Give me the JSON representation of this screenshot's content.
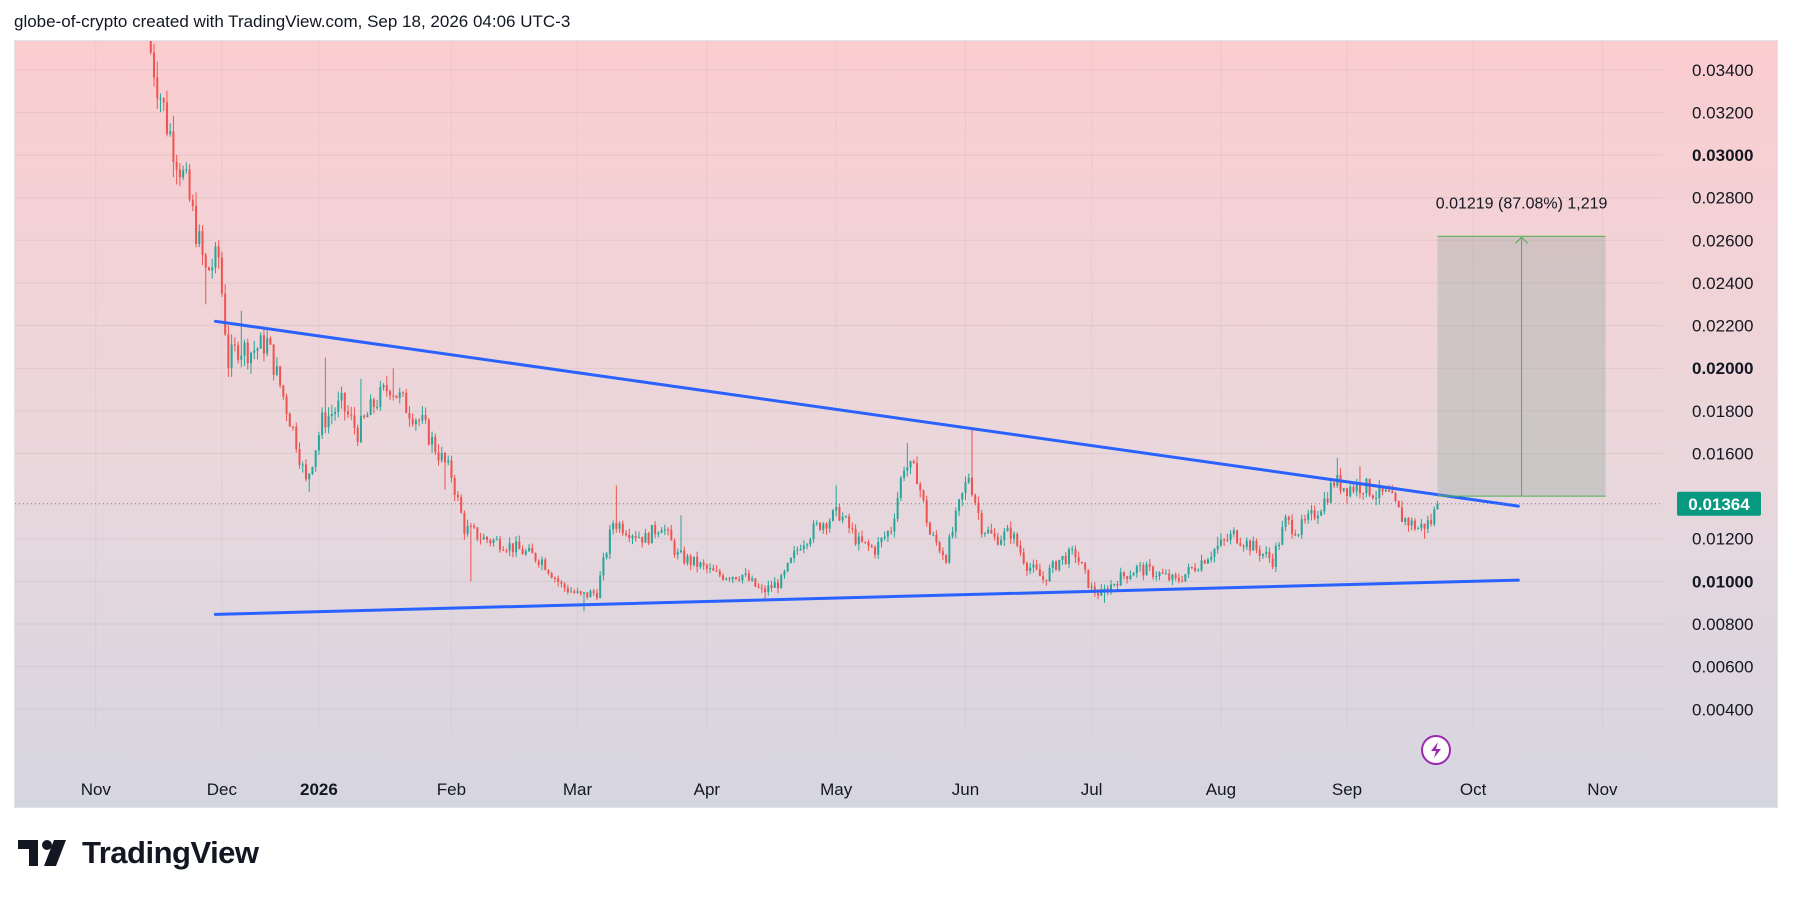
{
  "header": {
    "attribution": "globe-of-crypto created with TradingView.com, Sep 18, 2026 04:06 UTC-3"
  },
  "footer": {
    "brand": "TradingView"
  },
  "chart_data": {
    "type": "candlestick",
    "y_ticks": [
      "0.03400",
      "0.03200",
      "0.03000",
      "0.02800",
      "0.02600",
      "0.02400",
      "0.02200",
      "0.02000",
      "0.01800",
      "0.01600",
      "0.01200",
      "0.01000",
      "0.00800",
      "0.00600",
      "0.00400"
    ],
    "y_tick_values": [
      0.034,
      0.032,
      0.03,
      0.028,
      0.026,
      0.024,
      0.022,
      0.02,
      0.018,
      0.016,
      0.012,
      0.01,
      0.008,
      0.006,
      0.004
    ],
    "bold_ticks": [
      "0.03000",
      "0.02000",
      "0.01000"
    ],
    "ylim": [
      0.00345,
      0.03535
    ],
    "x_ticks": [
      "Nov",
      "Dec",
      "2026",
      "Feb",
      "Mar",
      "Apr",
      "May",
      "Jun",
      "Jul",
      "Aug",
      "Sep",
      "Oct",
      "Nov"
    ],
    "bold_x_ticks": [
      "2026"
    ],
    "x_tick_index": [
      0,
      39,
      69,
      110,
      149,
      189,
      229,
      269,
      308,
      348,
      387,
      426,
      466
    ],
    "x_range_index": [
      -25,
      520
    ],
    "current_price": {
      "label": "0.01364",
      "value": 0.01364
    },
    "colors": {
      "up": "#26a69a",
      "down": "#ef5350",
      "trendline": "#2962ff",
      "projection": "#4caf50",
      "price_badge": "#089981"
    },
    "trendlines": [
      {
        "name": "resistance",
        "from": {
          "i": 37,
          "v": 0.0222
        },
        "to": {
          "i": 440,
          "v": 0.01353
        }
      },
      {
        "name": "support",
        "from": {
          "i": 37,
          "v": 0.00845
        },
        "to": {
          "i": 440,
          "v": 0.01006
        }
      }
    ],
    "projection": {
      "label": "0.01219 (87.08%) 1,219",
      "from_index": 415,
      "to_index": 467,
      "low": 0.014,
      "high": 0.02619
    },
    "price_path": [
      {
        "i": 16,
        "v": 0.0355
      },
      {
        "i": 22,
        "v": 0.0315
      },
      {
        "i": 28,
        "v": 0.0285
      },
      {
        "i": 34,
        "v": 0.0245
      },
      {
        "i": 38,
        "v": 0.0252
      },
      {
        "i": 41,
        "v": 0.0203
      },
      {
        "i": 44,
        "v": 0.021
      },
      {
        "i": 48,
        "v": 0.0208
      },
      {
        "i": 53,
        "v": 0.0212
      },
      {
        "i": 57,
        "v": 0.0192
      },
      {
        "i": 62,
        "v": 0.0166
      },
      {
        "i": 65,
        "v": 0.0146
      },
      {
        "i": 70,
        "v": 0.0175
      },
      {
        "i": 76,
        "v": 0.0183
      },
      {
        "i": 81,
        "v": 0.017
      },
      {
        "i": 86,
        "v": 0.0183
      },
      {
        "i": 91,
        "v": 0.0192
      },
      {
        "i": 96,
        "v": 0.0182
      },
      {
        "i": 101,
        "v": 0.0174
      },
      {
        "i": 106,
        "v": 0.016
      },
      {
        "i": 110,
        "v": 0.015
      },
      {
        "i": 114,
        "v": 0.0125
      },
      {
        "i": 120,
        "v": 0.012
      },
      {
        "i": 126,
        "v": 0.0118
      },
      {
        "i": 132,
        "v": 0.0114
      },
      {
        "i": 138,
        "v": 0.011
      },
      {
        "i": 144,
        "v": 0.0098
      },
      {
        "i": 150,
        "v": 0.0093
      },
      {
        "i": 155,
        "v": 0.0095
      },
      {
        "i": 160,
        "v": 0.0128
      },
      {
        "i": 165,
        "v": 0.0124
      },
      {
        "i": 170,
        "v": 0.012
      },
      {
        "i": 175,
        "v": 0.0127
      },
      {
        "i": 180,
        "v": 0.0112
      },
      {
        "i": 186,
        "v": 0.0108
      },
      {
        "i": 192,
        "v": 0.0103
      },
      {
        "i": 200,
        "v": 0.0103
      },
      {
        "i": 206,
        "v": 0.0095
      },
      {
        "i": 212,
        "v": 0.01
      },
      {
        "i": 218,
        "v": 0.0118
      },
      {
        "i": 224,
        "v": 0.0127
      },
      {
        "i": 230,
        "v": 0.0132
      },
      {
        "i": 236,
        "v": 0.0118
      },
      {
        "i": 241,
        "v": 0.0115
      },
      {
        "i": 246,
        "v": 0.0125
      },
      {
        "i": 250,
        "v": 0.0155
      },
      {
        "i": 254,
        "v": 0.015
      },
      {
        "i": 258,
        "v": 0.0122
      },
      {
        "i": 263,
        "v": 0.0112
      },
      {
        "i": 267,
        "v": 0.0135
      },
      {
        "i": 270,
        "v": 0.015
      },
      {
        "i": 274,
        "v": 0.0126
      },
      {
        "i": 278,
        "v": 0.012
      },
      {
        "i": 283,
        "v": 0.0123
      },
      {
        "i": 288,
        "v": 0.0108
      },
      {
        "i": 293,
        "v": 0.0101
      },
      {
        "i": 298,
        "v": 0.011
      },
      {
        "i": 303,
        "v": 0.0113
      },
      {
        "i": 308,
        "v": 0.0096
      },
      {
        "i": 311,
        "v": 0.0094
      },
      {
        "i": 316,
        "v": 0.0101
      },
      {
        "i": 322,
        "v": 0.0106
      },
      {
        "i": 328,
        "v": 0.0104
      },
      {
        "i": 334,
        "v": 0.01
      },
      {
        "i": 340,
        "v": 0.0107
      },
      {
        "i": 346,
        "v": 0.0115
      },
      {
        "i": 352,
        "v": 0.0122
      },
      {
        "i": 358,
        "v": 0.0116
      },
      {
        "i": 364,
        "v": 0.011
      },
      {
        "i": 368,
        "v": 0.0128
      },
      {
        "i": 372,
        "v": 0.0124
      },
      {
        "i": 376,
        "v": 0.013
      },
      {
        "i": 380,
        "v": 0.0138
      },
      {
        "i": 383,
        "v": 0.0147
      },
      {
        "i": 387,
        "v": 0.0144
      },
      {
        "i": 392,
        "v": 0.0145
      },
      {
        "i": 396,
        "v": 0.0141
      },
      {
        "i": 400,
        "v": 0.014
      },
      {
        "i": 404,
        "v": 0.013
      },
      {
        "i": 409,
        "v": 0.0125
      },
      {
        "i": 413,
        "v": 0.0128
      },
      {
        "i": 415,
        "v": 0.01364
      }
    ],
    "swing_extremes": [
      {
        "i": 34,
        "v": 0.023
      },
      {
        "i": 45,
        "v": 0.0227
      },
      {
        "i": 66,
        "v": 0.0142
      },
      {
        "i": 71,
        "v": 0.0205
      },
      {
        "i": 82,
        "v": 0.0195
      },
      {
        "i": 92,
        "v": 0.02
      },
      {
        "i": 108,
        "v": 0.0143
      },
      {
        "i": 116,
        "v": 0.01
      },
      {
        "i": 151,
        "v": 0.0086
      },
      {
        "i": 161,
        "v": 0.0145
      },
      {
        "i": 181,
        "v": 0.0131
      },
      {
        "i": 207,
        "v": 0.0092
      },
      {
        "i": 229,
        "v": 0.0145
      },
      {
        "i": 251,
        "v": 0.0165
      },
      {
        "i": 262,
        "v": 0.011
      },
      {
        "i": 271,
        "v": 0.0172
      },
      {
        "i": 294,
        "v": 0.0098
      },
      {
        "i": 312,
        "v": 0.009
      },
      {
        "i": 347,
        "v": 0.0121
      },
      {
        "i": 365,
        "v": 0.0106
      },
      {
        "i": 384,
        "v": 0.0158
      },
      {
        "i": 391,
        "v": 0.0154
      },
      {
        "i": 411,
        "v": 0.012
      }
    ]
  }
}
